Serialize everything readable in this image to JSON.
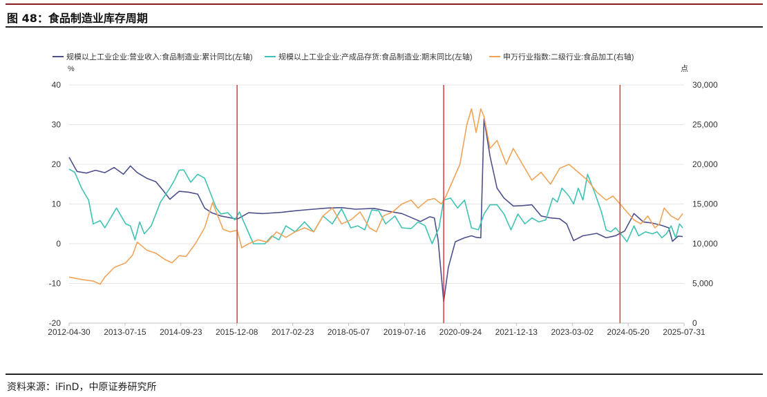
{
  "figure": {
    "title": "图 48：食品制造业库存周期",
    "source": "资料来源：iFinD，中原证券研究所"
  },
  "colors": {
    "revenue": "#4b4f8c",
    "inventory": "#3ec2b4",
    "index": "#f0a357",
    "vline": "#e03a3a",
    "grid": "#e4e4e4",
    "axis_text": "#333333"
  },
  "chart_data": {
    "type": "line",
    "legend": [
      "规模以上工业企业:营业收入:食品制造业:累计同比(左轴)",
      "规模以上工业企业:产成品存货:食品制造业:期末同比(左轴)",
      "申万行业指数:二级行业:食品加工(右轴)"
    ],
    "legend_placement": "top",
    "y_left_unit": "%",
    "y_right_unit": "点",
    "y_left_range": [
      -20,
      40
    ],
    "y_right_range": [
      0,
      30000
    ],
    "y_left_ticks": [
      "40",
      "30",
      "20",
      "10",
      "0",
      "-10",
      "-20"
    ],
    "y_right_ticks": [
      "30,000",
      "25,000",
      "20,000",
      "15,000",
      "10,000",
      "5,000",
      "0"
    ],
    "x_range": [
      2012.33,
      2025.58
    ],
    "x_tick_labels": [
      "2012-04-30",
      "2013-07-15",
      "2014-09-23",
      "2015-12-08",
      "2017-02-23",
      "2018-05-07",
      "2019-07-16",
      "2020-09-24",
      "2021-12-13",
      "2023-03-02",
      "2024-05-20",
      "2025-07-31"
    ],
    "vertical_markers": [
      2015.95,
      2020.4,
      2024.2
    ],
    "series": [
      {
        "name": "规模以上工业企业:营业收入:食品制造业:累计同比(左轴)",
        "axis": "left",
        "points": [
          [
            2012.33,
            21.8
          ],
          [
            2012.5,
            18.2
          ],
          [
            2012.7,
            17.8
          ],
          [
            2012.9,
            18.5
          ],
          [
            2013.1,
            17.9
          ],
          [
            2013.3,
            19.2
          ],
          [
            2013.5,
            17.5
          ],
          [
            2013.65,
            19.6
          ],
          [
            2013.8,
            17.9
          ],
          [
            2014.0,
            16.5
          ],
          [
            2014.2,
            15.6
          ],
          [
            2014.35,
            13.5
          ],
          [
            2014.5,
            11.2
          ],
          [
            2014.7,
            13.2
          ],
          [
            2014.9,
            13.0
          ],
          [
            2015.1,
            12.5
          ],
          [
            2015.25,
            9.0
          ],
          [
            2015.4,
            7.8
          ],
          [
            2015.6,
            7.0
          ],
          [
            2015.95,
            6.2
          ],
          [
            2016.2,
            7.8
          ],
          [
            2016.5,
            7.6
          ],
          [
            2016.9,
            7.9
          ],
          [
            2017.2,
            8.3
          ],
          [
            2017.5,
            8.6
          ],
          [
            2017.9,
            9.0
          ],
          [
            2018.2,
            9.1
          ],
          [
            2018.5,
            8.7
          ],
          [
            2018.9,
            8.9
          ],
          [
            2019.2,
            8.2
          ],
          [
            2019.5,
            7.6
          ],
          [
            2019.9,
            5.6
          ],
          [
            2020.1,
            6.8
          ],
          [
            2020.2,
            6.5
          ],
          [
            2020.28,
            1.0
          ],
          [
            2020.4,
            -14.6
          ],
          [
            2020.5,
            -6.0
          ],
          [
            2020.65,
            0.5
          ],
          [
            2020.85,
            1.5
          ],
          [
            2021.0,
            2.0
          ],
          [
            2021.1,
            1.6
          ],
          [
            2021.2,
            1.5
          ],
          [
            2021.27,
            31.5
          ],
          [
            2021.4,
            22.0
          ],
          [
            2021.55,
            14.0
          ],
          [
            2021.7,
            11.5
          ],
          [
            2021.9,
            9.5
          ],
          [
            2022.1,
            9.6
          ],
          [
            2022.3,
            9.8
          ],
          [
            2022.5,
            7.0
          ],
          [
            2022.7,
            6.5
          ],
          [
            2022.9,
            6.3
          ],
          [
            2023.05,
            5.0
          ],
          [
            2023.2,
            0.8
          ],
          [
            2023.4,
            2.0
          ],
          [
            2023.7,
            2.6
          ],
          [
            2023.9,
            1.5
          ],
          [
            2024.1,
            2.0
          ],
          [
            2024.3,
            3.2
          ],
          [
            2024.5,
            7.6
          ],
          [
            2024.7,
            5.5
          ],
          [
            2024.9,
            5.2
          ],
          [
            2025.1,
            4.6
          ],
          [
            2025.25,
            4.0
          ],
          [
            2025.33,
            0.6
          ],
          [
            2025.45,
            1.9
          ],
          [
            2025.55,
            1.8
          ]
        ]
      },
      {
        "name": "规模以上工业企业:产成品存货:食品制造业:期末同比(左轴)",
        "axis": "left",
        "points": [
          [
            2012.33,
            18.8
          ],
          [
            2012.45,
            18.0
          ],
          [
            2012.6,
            14.0
          ],
          [
            2012.75,
            11.0
          ],
          [
            2012.85,
            5.0
          ],
          [
            2013.0,
            5.8
          ],
          [
            2013.1,
            4.0
          ],
          [
            2013.35,
            9.0
          ],
          [
            2013.55,
            5.0
          ],
          [
            2013.65,
            4.5
          ],
          [
            2013.75,
            1.0
          ],
          [
            2013.85,
            5.5
          ],
          [
            2013.95,
            2.5
          ],
          [
            2014.1,
            4.5
          ],
          [
            2014.3,
            10.5
          ],
          [
            2014.5,
            14.0
          ],
          [
            2014.6,
            16.0
          ],
          [
            2014.7,
            18.5
          ],
          [
            2014.8,
            18.6
          ],
          [
            2014.95,
            15.5
          ],
          [
            2015.1,
            17.5
          ],
          [
            2015.25,
            16.5
          ],
          [
            2015.4,
            12.0
          ],
          [
            2015.5,
            9.0
          ],
          [
            2015.6,
            7.5
          ],
          [
            2015.75,
            7.8
          ],
          [
            2015.9,
            6.0
          ],
          [
            2016.0,
            8.0
          ],
          [
            2016.15,
            4.0
          ],
          [
            2016.3,
            0.0
          ],
          [
            2016.55,
            0.0
          ],
          [
            2016.7,
            2.0
          ],
          [
            2016.85,
            1.0
          ],
          [
            2017.0,
            4.5
          ],
          [
            2017.2,
            3.0
          ],
          [
            2017.4,
            5.5
          ],
          [
            2017.6,
            3.0
          ],
          [
            2017.8,
            7.0
          ],
          [
            2018.0,
            5.0
          ],
          [
            2018.2,
            8.8
          ],
          [
            2018.4,
            4.0
          ],
          [
            2018.55,
            4.5
          ],
          [
            2018.7,
            3.5
          ],
          [
            2018.85,
            8.5
          ],
          [
            2019.0,
            8.3
          ],
          [
            2019.15,
            5.0
          ],
          [
            2019.35,
            7.0
          ],
          [
            2019.5,
            4.0
          ],
          [
            2019.7,
            3.8
          ],
          [
            2019.85,
            5.5
          ],
          [
            2020.0,
            4.5
          ],
          [
            2020.15,
            0.0
          ],
          [
            2020.3,
            4.0
          ],
          [
            2020.4,
            11.0
          ],
          [
            2020.55,
            11.5
          ],
          [
            2020.7,
            9.0
          ],
          [
            2020.85,
            11.0
          ],
          [
            2021.0,
            4.0
          ],
          [
            2021.15,
            3.5
          ],
          [
            2021.27,
            7.5
          ],
          [
            2021.4,
            9.8
          ],
          [
            2021.55,
            9.8
          ],
          [
            2021.7,
            7.5
          ],
          [
            2021.85,
            3.5
          ],
          [
            2022.0,
            7.5
          ],
          [
            2022.15,
            5.0
          ],
          [
            2022.3,
            6.5
          ],
          [
            2022.45,
            5.5
          ],
          [
            2022.6,
            6.0
          ],
          [
            2022.75,
            11.5
          ],
          [
            2022.85,
            10.5
          ],
          [
            2022.95,
            14.0
          ],
          [
            2023.1,
            12.0
          ],
          [
            2023.2,
            10.0
          ],
          [
            2023.3,
            14.0
          ],
          [
            2023.4,
            11.0
          ],
          [
            2023.5,
            17.5
          ],
          [
            2023.65,
            13.0
          ],
          [
            2023.8,
            8.0
          ],
          [
            2023.9,
            3.5
          ],
          [
            2024.0,
            3.0
          ],
          [
            2024.1,
            4.0
          ],
          [
            2024.25,
            2.0
          ],
          [
            2024.35,
            0.5
          ],
          [
            2024.5,
            4.5
          ],
          [
            2024.6,
            2.0
          ],
          [
            2024.75,
            3.0
          ],
          [
            2024.9,
            2.5
          ],
          [
            2025.0,
            3.0
          ],
          [
            2025.1,
            1.5
          ],
          [
            2025.2,
            2.5
          ],
          [
            2025.3,
            4.5
          ],
          [
            2025.4,
            1.5
          ],
          [
            2025.48,
            5.0
          ],
          [
            2025.55,
            4.0
          ]
        ]
      },
      {
        "name": "申万行业指数:二级行业:食品加工(右轴)",
        "axis": "right",
        "points": [
          [
            2012.33,
            5800
          ],
          [
            2012.6,
            5500
          ],
          [
            2012.85,
            5300
          ],
          [
            2013.0,
            4900
          ],
          [
            2013.1,
            5800
          ],
          [
            2013.3,
            7000
          ],
          [
            2013.55,
            7600
          ],
          [
            2013.7,
            8600
          ],
          [
            2013.8,
            10200
          ],
          [
            2014.0,
            9200
          ],
          [
            2014.2,
            8800
          ],
          [
            2014.4,
            8000
          ],
          [
            2014.55,
            7600
          ],
          [
            2014.7,
            8500
          ],
          [
            2014.85,
            8400
          ],
          [
            2015.05,
            10000
          ],
          [
            2015.25,
            12000
          ],
          [
            2015.42,
            15200
          ],
          [
            2015.5,
            14000
          ],
          [
            2015.65,
            11800
          ],
          [
            2015.8,
            11500
          ],
          [
            2015.95,
            11700
          ],
          [
            2016.05,
            9500
          ],
          [
            2016.2,
            10000
          ],
          [
            2016.4,
            10500
          ],
          [
            2016.6,
            10200
          ],
          [
            2016.8,
            11500
          ],
          [
            2017.0,
            10800
          ],
          [
            2017.2,
            11500
          ],
          [
            2017.4,
            12000
          ],
          [
            2017.6,
            11500
          ],
          [
            2017.8,
            13500
          ],
          [
            2018.0,
            14500
          ],
          [
            2018.2,
            12500
          ],
          [
            2018.4,
            13000
          ],
          [
            2018.6,
            14000
          ],
          [
            2018.8,
            12000
          ],
          [
            2018.95,
            11500
          ],
          [
            2019.1,
            13500
          ],
          [
            2019.3,
            14000
          ],
          [
            2019.5,
            15000
          ],
          [
            2019.7,
            15500
          ],
          [
            2019.85,
            14500
          ],
          [
            2020.05,
            15500
          ],
          [
            2020.2,
            15700
          ],
          [
            2020.35,
            15000
          ],
          [
            2020.45,
            16000
          ],
          [
            2020.6,
            18000
          ],
          [
            2020.75,
            20000
          ],
          [
            2020.9,
            25000
          ],
          [
            2021.0,
            27000
          ],
          [
            2021.1,
            24000
          ],
          [
            2021.2,
            27000
          ],
          [
            2021.27,
            26000
          ],
          [
            2021.4,
            22000
          ],
          [
            2021.55,
            23000
          ],
          [
            2021.75,
            20000
          ],
          [
            2021.9,
            22000
          ],
          [
            2022.1,
            20000
          ],
          [
            2022.3,
            18000
          ],
          [
            2022.5,
            19000
          ],
          [
            2022.7,
            17500
          ],
          [
            2022.9,
            19500
          ],
          [
            2023.1,
            20000
          ],
          [
            2023.3,
            19000
          ],
          [
            2023.5,
            18000
          ],
          [
            2023.7,
            16500
          ],
          [
            2023.9,
            15500
          ],
          [
            2024.05,
            16000
          ],
          [
            2024.2,
            15000
          ],
          [
            2024.35,
            14000
          ],
          [
            2024.5,
            13000
          ],
          [
            2024.65,
            12500
          ],
          [
            2024.8,
            13500
          ],
          [
            2024.95,
            12000
          ],
          [
            2025.05,
            12500
          ],
          [
            2025.15,
            14500
          ],
          [
            2025.3,
            13500
          ],
          [
            2025.45,
            13000
          ],
          [
            2025.55,
            13800
          ]
        ]
      }
    ]
  }
}
